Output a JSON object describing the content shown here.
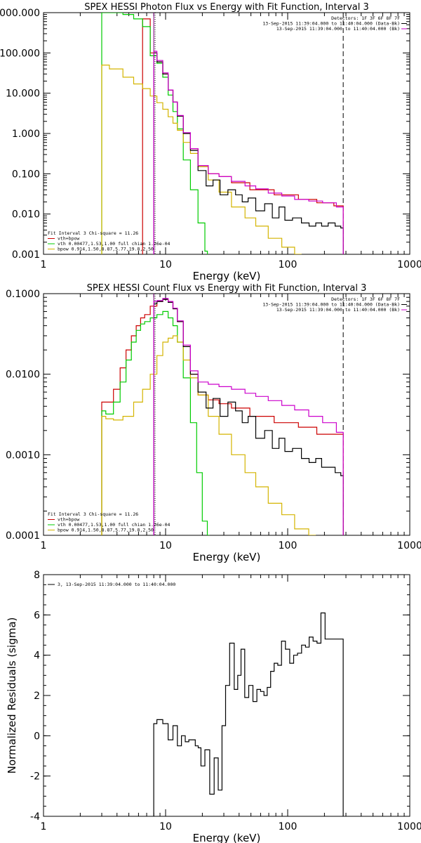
{
  "colors": {
    "data": "#000000",
    "total": "#cc0000",
    "vth": "#00cc00",
    "bpow": "#d4b400",
    "bkg": "#cc00cc",
    "marker": "#800080"
  },
  "chart_data": [
    {
      "type": "line",
      "title": "SPEX HESSI Photon Flux vs Energy with Fit Function, Interval 3",
      "xlabel": "Energy (keV)",
      "ylabel": "",
      "xscale": "log",
      "yscale": "log",
      "xlim": [
        1,
        1000
      ],
      "ylim": [
        0.001,
        1000
      ],
      "xticks": [
        1,
        10,
        100,
        1000
      ],
      "xtick_labels": [
        "1",
        "10",
        "100",
        "1000"
      ],
      "yticks": [
        0.001,
        0.01,
        0.1,
        1,
        10,
        100,
        1000
      ],
      "ytick_labels": [
        "0.001",
        "0.010",
        "0.100",
        "1.000",
        "10.000",
        "100.000",
        "1000.000"
      ],
      "info": [
        "Detectors: 1F 3F 6F 8F 7F",
        "13-Sep-2015 11:39:04.000 to 11:40:04.000 (Data-Bk)",
        "13-Sep-2015 11:39:04.000 to 11:40:04.000 (Bk)"
      ],
      "legend": [
        "Fit Interval 3   Chi-square = 11.26",
        "vth+bpow",
        "vth 0.00477,1.53,1.00  full chian 1.26e-04",
        "bpow 0.914,1.50,8.87,5.77,19.8,2.50"
      ],
      "legend_position": "bottom-left",
      "vlines": [
        8.0,
        8.2,
        285
      ],
      "series": [
        {
          "name": "vth+bpow",
          "color": "#cc0000",
          "x": [
            3,
            4,
            5,
            6,
            7,
            8,
            9,
            10,
            11,
            12,
            13,
            15,
            17,
            20,
            25,
            30,
            40,
            60,
            100,
            150,
            200,
            285
          ],
          "y": [
            null,
            null,
            null,
            null,
            700,
            100,
            60,
            30,
            12,
            6,
            2.7,
            1.0,
            0.42,
            0.15,
            0.1,
            0.085,
            0.06,
            0.04,
            0.03,
            0.023,
            0.019,
            0.016
          ]
        },
        {
          "name": "vth 0.00477,1.53,1.00  full chian 1.26e-04",
          "color": "#00cc00",
          "x": [
            3,
            4,
            5,
            6,
            7,
            8,
            9,
            10,
            11,
            12,
            13,
            15,
            17,
            20,
            22
          ],
          "y": [
            1000,
            1000,
            900,
            700,
            450,
            85,
            55,
            25,
            9,
            3.5,
            1.3,
            0.22,
            0.04,
            0.006,
            0.0012
          ]
        },
        {
          "name": "bpow 0.914,1.50,8.87,5.77,19.8,2.50",
          "color": "#d4b400",
          "x": [
            3,
            4,
            5,
            6,
            7,
            8,
            9,
            10,
            11,
            12,
            13,
            15,
            17,
            20,
            25,
            30,
            40,
            50,
            60,
            80,
            100,
            130
          ],
          "y": [
            50,
            40,
            25,
            17,
            13,
            8.5,
            5.8,
            4,
            2.6,
            1.8,
            1.2,
            0.6,
            0.32,
            0.15,
            0.07,
            0.035,
            0.015,
            0.008,
            0.005,
            0.0025,
            0.0015,
            0.001
          ]
        },
        {
          "name": "Data-Bk",
          "color": "#000000",
          "x": [
            8,
            9,
            10,
            11,
            12,
            13,
            15,
            17,
            20,
            23,
            26,
            30,
            35,
            40,
            45,
            50,
            60,
            70,
            80,
            90,
            100,
            120,
            140,
            160,
            180,
            200,
            230,
            260,
            285
          ],
          "y": [
            100,
            60,
            30,
            12,
            6,
            2.7,
            1.0,
            0.38,
            0.12,
            0.05,
            0.07,
            0.03,
            0.04,
            0.03,
            0.02,
            0.025,
            0.012,
            0.018,
            0.008,
            0.015,
            0.007,
            0.008,
            0.006,
            0.005,
            0.006,
            0.005,
            0.006,
            0.005,
            0.0045
          ]
        },
        {
          "name": "Bk",
          "color": "#cc00cc",
          "x": [
            8,
            9,
            10,
            11,
            12,
            13,
            15,
            17,
            20,
            25,
            30,
            40,
            50,
            60,
            80,
            100,
            130,
            170,
            220,
            285
          ],
          "y": [
            110,
            65,
            32,
            12,
            6,
            2.8,
            1.05,
            0.42,
            0.16,
            0.1,
            0.085,
            0.065,
            0.05,
            0.042,
            0.033,
            0.028,
            0.023,
            0.021,
            0.019,
            0.015
          ]
        }
      ]
    },
    {
      "type": "line",
      "title": "SPEX HESSI Count Flux vs Energy with Fit Function, Interval 3",
      "xlabel": "Energy (keV)",
      "ylabel": "",
      "xscale": "log",
      "yscale": "log",
      "xlim": [
        1,
        1000
      ],
      "ylim": [
        0.0001,
        0.1
      ],
      "xticks": [
        1,
        10,
        100,
        1000
      ],
      "xtick_labels": [
        "1",
        "10",
        "100",
        "1000"
      ],
      "yticks": [
        0.0001,
        0.001,
        0.01,
        0.1
      ],
      "ytick_labels": [
        "0.0001",
        "0.0010",
        "0.0100",
        "0.1000"
      ],
      "info": [
        "Detectors: 1F 3F 6F 8F 7F",
        "13-Sep-2015 11:39:04.000 to 11:40:04.000 (Data-Bk)",
        "13-Sep-2015 11:39:04.000 to 11:40:04.000 (Bk)"
      ],
      "legend": [
        "Fit Interval 3   Chi-square = 11.26",
        "vth+bpow",
        "vth 0.00477,1.53,1.00  full chian 1.26e-04",
        "bpow 0.914,1.50,8.87,5.77,19.8,2.50"
      ],
      "legend_position": "bottom-left",
      "vlines": [
        8.0,
        8.2,
        285
      ],
      "series": [
        {
          "name": "vth+bpow",
          "color": "#cc0000",
          "x": [
            3,
            3.5,
            4,
            4.5,
            5,
            5.5,
            6,
            6.5,
            7,
            8,
            9,
            10,
            11,
            12,
            13,
            15,
            17,
            20,
            25,
            30,
            40,
            60,
            100,
            150,
            200,
            285
          ],
          "y": [
            0.0045,
            0.0045,
            0.0065,
            0.012,
            0.02,
            0.03,
            0.04,
            0.05,
            0.055,
            0.07,
            0.08,
            0.085,
            0.078,
            0.065,
            0.045,
            0.022,
            0.01,
            0.0055,
            0.0048,
            0.0043,
            0.0038,
            0.003,
            0.0025,
            0.0022,
            0.0018,
            0.0018
          ]
        },
        {
          "name": "vth 0.00477,1.53,1.00  full chian 1.26e-04",
          "color": "#00cc00",
          "x": [
            3,
            3.5,
            4,
            4.5,
            5,
            5.5,
            6,
            6.5,
            7,
            8,
            9,
            10,
            11,
            12,
            13,
            15,
            17,
            19,
            21,
            23
          ],
          "y": [
            0.0035,
            0.0032,
            0.0045,
            0.008,
            0.015,
            0.025,
            0.035,
            0.042,
            0.045,
            0.05,
            0.055,
            0.06,
            0.05,
            0.04,
            0.025,
            0.009,
            0.0025,
            0.0006,
            0.00015,
            0.0001
          ]
        },
        {
          "name": "bpow 0.914,1.50,8.87,5.77,19.8,2.50",
          "color": "#d4b400",
          "x": [
            3,
            3.5,
            4,
            5,
            6,
            7,
            8,
            9,
            10,
            11,
            12,
            13,
            15,
            17,
            20,
            25,
            30,
            40,
            50,
            60,
            80,
            100,
            130,
            170
          ],
          "y": [
            0.003,
            0.0028,
            0.0027,
            0.003,
            0.0045,
            0.0065,
            0.01,
            0.017,
            0.025,
            0.028,
            0.03,
            0.025,
            0.015,
            0.009,
            0.0055,
            0.003,
            0.0018,
            0.001,
            0.0006,
            0.0004,
            0.00025,
            0.00018,
            0.00012,
            0.0001
          ]
        },
        {
          "name": "Data-Bk",
          "color": "#000000",
          "x": [
            8,
            9,
            10,
            11,
            12,
            13,
            15,
            17,
            20,
            23,
            26,
            30,
            35,
            40,
            45,
            50,
            60,
            70,
            80,
            90,
            100,
            120,
            140,
            160,
            180,
            200,
            230,
            260,
            285
          ],
          "y": [
            0.075,
            0.08,
            0.085,
            0.078,
            0.065,
            0.045,
            0.022,
            0.01,
            0.006,
            0.0038,
            0.005,
            0.003,
            0.0045,
            0.0035,
            0.0025,
            0.003,
            0.0016,
            0.002,
            0.0012,
            0.0016,
            0.0011,
            0.0012,
            0.0009,
            0.0008,
            0.0009,
            0.0007,
            0.0007,
            0.0006,
            0.00055
          ]
        },
        {
          "name": "Bk",
          "color": "#cc00cc",
          "x": [
            8,
            9,
            10,
            11,
            12,
            13,
            15,
            17,
            20,
            25,
            30,
            40,
            50,
            60,
            80,
            100,
            130,
            170,
            220,
            285
          ],
          "y": [
            0.08,
            0.082,
            0.087,
            0.08,
            0.066,
            0.046,
            0.023,
            0.011,
            0.008,
            0.0075,
            0.007,
            0.0065,
            0.0058,
            0.0053,
            0.0047,
            0.0041,
            0.0036,
            0.003,
            0.0025,
            0.0019
          ]
        }
      ]
    },
    {
      "type": "line",
      "title": "",
      "xlabel": "Energy (keV)",
      "ylabel": "Normalized Residuals (sigma)",
      "xscale": "log",
      "yscale": "linear",
      "xlim": [
        1,
        1000
      ],
      "ylim": [
        -4,
        8
      ],
      "xticks": [
        1,
        10,
        100,
        1000
      ],
      "xtick_labels": [
        "1",
        "10",
        "100",
        "1000"
      ],
      "yticks": [
        -4,
        -2,
        0,
        2,
        4,
        6,
        8
      ],
      "ytick_labels": [
        "-4",
        "-2",
        "0",
        "2",
        "4",
        "6",
        "8"
      ],
      "legend": [
        "3, 13-Sep-2015 11:39:04.000 to 11:40:04.000"
      ],
      "legend_position": "top-left",
      "series": [
        {
          "name": "3, 13-Sep-2015 11:39:04.000 to 11:40:04.000",
          "color": "#000000",
          "x": [
            8,
            9,
            10,
            11,
            12,
            13,
            14,
            15,
            16,
            17,
            18,
            19,
            20,
            22,
            24,
            26,
            28,
            30,
            32,
            35,
            38,
            40,
            43,
            46,
            50,
            54,
            58,
            62,
            66,
            70,
            75,
            80,
            86,
            92,
            100,
            108,
            116,
            125,
            135,
            145,
            155,
            168,
            180,
            195,
            210,
            225,
            240,
            260,
            285
          ],
          "y": [
            0.6,
            0.8,
            0.6,
            -0.2,
            0.5,
            -0.5,
            0.0,
            -0.3,
            -0.2,
            -0.2,
            -0.5,
            -0.6,
            -1.5,
            -0.7,
            -2.9,
            -1.1,
            -2.7,
            0.5,
            2.5,
            4.6,
            2.3,
            3.0,
            4.3,
            1.9,
            2.5,
            1.7,
            2.3,
            2.2,
            2.0,
            2.4,
            3.2,
            3.6,
            3.5,
            4.7,
            4.3,
            3.6,
            4.0,
            4.1,
            4.5,
            4.4,
            4.9,
            4.7,
            4.6,
            6.1,
            4.8,
            4.8,
            4.8,
            4.8,
            4.8
          ]
        }
      ]
    }
  ]
}
